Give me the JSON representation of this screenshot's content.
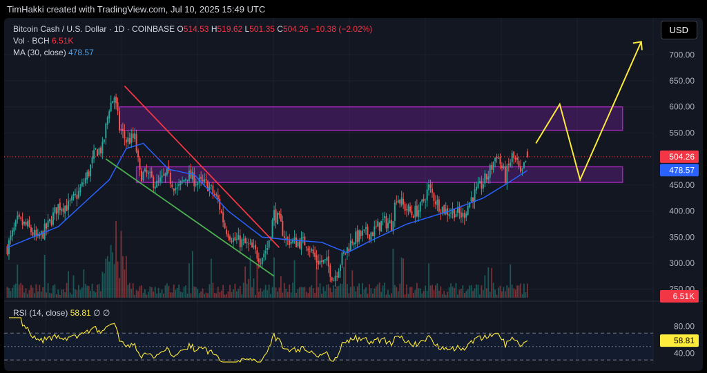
{
  "header": {
    "credit": "TimHakki created with TradingView.com, Jul 10, 2025 15:49 UTC"
  },
  "legend": {
    "symbol": "Bitcoin Cash / U.S. Dollar · 1D · COINBASE",
    "o_label": "O",
    "o_value": "514.53",
    "h_label": "H",
    "h_value": "519.62",
    "l_label": "L",
    "l_value": "501.35",
    "c_label": "C",
    "c_value": "504.26",
    "change": "−10.38 (−2.02%)",
    "vol_label": "Vol · BCH",
    "vol_value": "6.51K",
    "ma_label": "MA (30, close)",
    "ma_value": "478.57"
  },
  "currency_button": "USD",
  "rsi_legend": {
    "label": "RSI (14, close)",
    "value": "58.81",
    "icons": "∅ ∅"
  },
  "colors": {
    "up": "#26a69a",
    "down": "#ef5350",
    "ma": "#2962ff",
    "zone_fill": "rgba(123,31,162,0.35)",
    "zone_border": "#9c27b0",
    "downtrend_line": "#f23645",
    "support_line": "#4caf50",
    "projection": "#ffeb3b",
    "rsi_line": "#ffeb3b"
  },
  "chart_data": [
    {
      "type": "candlestick",
      "title": "Bitcoin Cash / U.S. Dollar · 1D · COINBASE",
      "ylim": [
        210,
        740
      ],
      "y_ticks": [
        "700.00",
        "650.00",
        "600.00",
        "550.00",
        "450.00",
        "400.00",
        "350.00",
        "300.00",
        "250.00"
      ],
      "last_price": "504.26",
      "ma_last": "478.57",
      "volume_last": "6.51K",
      "anchors": [
        {
          "i": 0,
          "p": 330
        },
        {
          "i": 6,
          "p": 380
        },
        {
          "i": 12,
          "p": 370
        },
        {
          "i": 18,
          "p": 345
        },
        {
          "i": 24,
          "p": 372
        },
        {
          "i": 30,
          "p": 410
        },
        {
          "i": 36,
          "p": 410
        },
        {
          "i": 42,
          "p": 435
        },
        {
          "i": 48,
          "p": 475
        },
        {
          "i": 52,
          "p": 515
        },
        {
          "i": 56,
          "p": 520
        },
        {
          "i": 60,
          "p": 600
        },
        {
          "i": 63,
          "p": 620
        },
        {
          "i": 66,
          "p": 560
        },
        {
          "i": 70,
          "p": 535
        },
        {
          "i": 75,
          "p": 540
        },
        {
          "i": 78,
          "p": 470
        },
        {
          "i": 82,
          "p": 470
        },
        {
          "i": 88,
          "p": 450
        },
        {
          "i": 94,
          "p": 470
        },
        {
          "i": 100,
          "p": 440
        },
        {
          "i": 106,
          "p": 470
        },
        {
          "i": 112,
          "p": 455
        },
        {
          "i": 118,
          "p": 450
        },
        {
          "i": 124,
          "p": 420
        },
        {
          "i": 128,
          "p": 370
        },
        {
          "i": 133,
          "p": 345
        },
        {
          "i": 138,
          "p": 340
        },
        {
          "i": 143,
          "p": 330
        },
        {
          "i": 149,
          "p": 310
        },
        {
          "i": 153,
          "p": 330
        },
        {
          "i": 157,
          "p": 395
        },
        {
          "i": 160,
          "p": 380
        },
        {
          "i": 164,
          "p": 345
        },
        {
          "i": 170,
          "p": 340
        },
        {
          "i": 176,
          "p": 340
        },
        {
          "i": 182,
          "p": 305
        },
        {
          "i": 188,
          "p": 300
        },
        {
          "i": 192,
          "p": 270
        },
        {
          "i": 197,
          "p": 310
        },
        {
          "i": 203,
          "p": 345
        },
        {
          "i": 209,
          "p": 355
        },
        {
          "i": 215,
          "p": 360
        },
        {
          "i": 221,
          "p": 380
        },
        {
          "i": 226,
          "p": 375
        },
        {
          "i": 229,
          "p": 430
        },
        {
          "i": 233,
          "p": 410
        },
        {
          "i": 238,
          "p": 395
        },
        {
          "i": 243,
          "p": 405
        },
        {
          "i": 248,
          "p": 445
        },
        {
          "i": 253,
          "p": 415
        },
        {
          "i": 258,
          "p": 400
        },
        {
          "i": 263,
          "p": 400
        },
        {
          "i": 268,
          "p": 390
        },
        {
          "i": 273,
          "p": 425
        },
        {
          "i": 278,
          "p": 445
        },
        {
          "i": 283,
          "p": 470
        },
        {
          "i": 288,
          "p": 510
        },
        {
          "i": 293,
          "p": 465
        },
        {
          "i": 297,
          "p": 505
        },
        {
          "i": 300,
          "p": 490
        },
        {
          "i": 302,
          "p": 465
        },
        {
          "i": 306,
          "p": 505
        }
      ],
      "ma_anchors": [
        {
          "i": 0,
          "p": 330
        },
        {
          "i": 30,
          "p": 370
        },
        {
          "i": 60,
          "p": 460
        },
        {
          "i": 70,
          "p": 520
        },
        {
          "i": 80,
          "p": 530
        },
        {
          "i": 95,
          "p": 480
        },
        {
          "i": 110,
          "p": 470
        },
        {
          "i": 130,
          "p": 400
        },
        {
          "i": 150,
          "p": 350
        },
        {
          "i": 165,
          "p": 345
        },
        {
          "i": 185,
          "p": 340
        },
        {
          "i": 200,
          "p": 320
        },
        {
          "i": 215,
          "p": 345
        },
        {
          "i": 235,
          "p": 375
        },
        {
          "i": 260,
          "p": 400
        },
        {
          "i": 280,
          "p": 425
        },
        {
          "i": 295,
          "p": 455
        },
        {
          "i": 306,
          "p": 478
        }
      ],
      "zones": [
        {
          "name": "upper-resistance-zone",
          "from_i": 66,
          "to_i": 362,
          "low": 555,
          "high": 600
        },
        {
          "name": "lower-support-zone",
          "from_i": 76,
          "to_i": 362,
          "low": 455,
          "high": 485
        }
      ],
      "trendlines": [
        {
          "name": "downtrend-line",
          "from": {
            "i": 69,
            "p": 640
          },
          "to": {
            "i": 160,
            "p": 330
          }
        },
        {
          "name": "support-channel-line",
          "from": {
            "i": 58,
            "p": 500
          },
          "to": {
            "i": 157,
            "p": 275
          }
        }
      ],
      "projection": [
        {
          "i": 311,
          "p": 530
        },
        {
          "i": 325,
          "p": 605
        },
        {
          "i": 337,
          "p": 460
        },
        {
          "i": 373,
          "p": 725
        }
      ]
    },
    {
      "type": "line",
      "title": "RSI (14, close)",
      "ylim": [
        25,
        95
      ],
      "y_ticks": [
        "80.00",
        "40.00"
      ],
      "bands": [
        70,
        50,
        30
      ],
      "last_value": "58.81"
    }
  ]
}
